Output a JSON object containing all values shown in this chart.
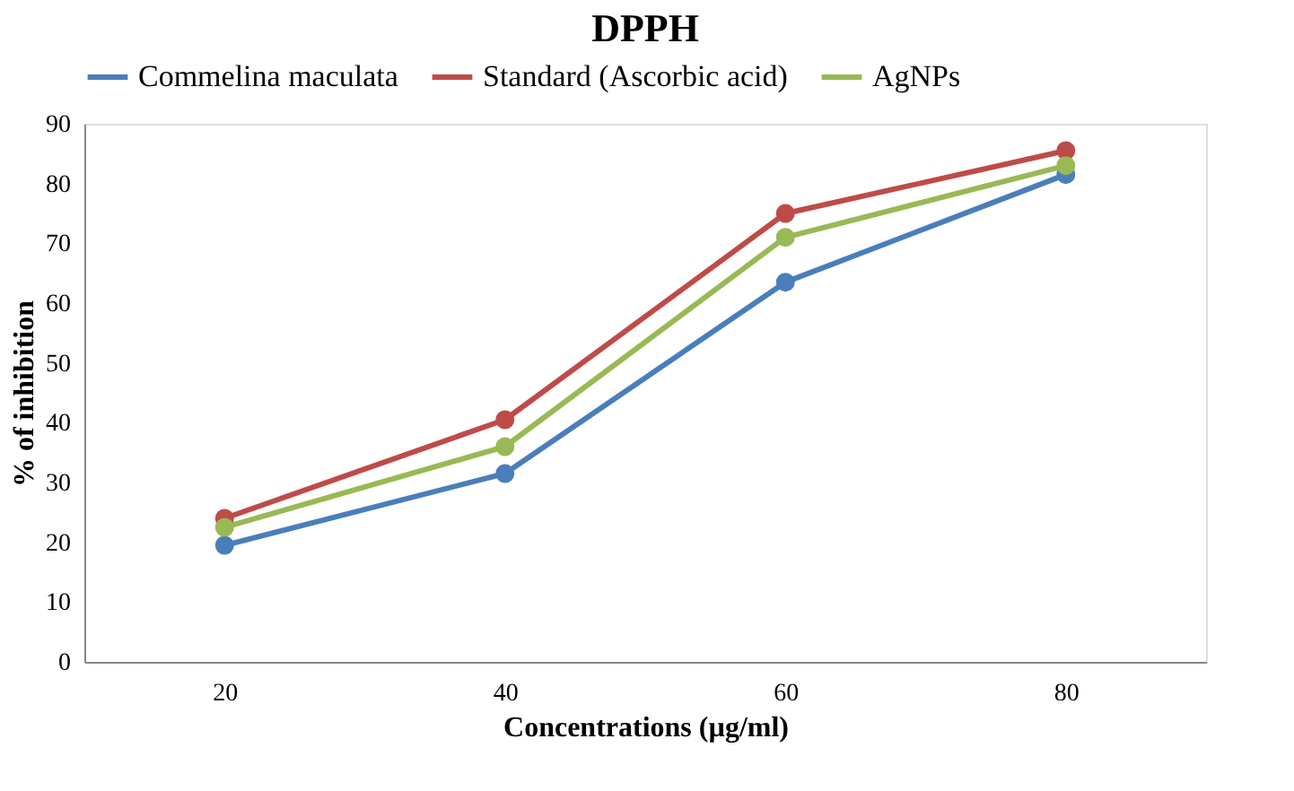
{
  "chart_data": {
    "type": "line",
    "title": "DPPH",
    "xlabel": "Concentrations (µg/ml)",
    "ylabel": "% of inhibition",
    "categories": [
      "20",
      "40",
      "60",
      "80"
    ],
    "series": [
      {
        "name": "Commelina maculata",
        "color": "#4a7ebb",
        "values": [
          19.5,
          31.5,
          63.5,
          81.5
        ]
      },
      {
        "name": "Standard (Ascorbic acid)",
        "color": "#be4b48",
        "values": [
          24,
          40.5,
          75,
          85.5
        ]
      },
      {
        "name": "AgNPs",
        "color": "#98b954",
        "values": [
          22.5,
          36,
          71,
          83
        ]
      }
    ],
    "ylim": [
      0,
      90
    ],
    "yticks": [
      0,
      10,
      20,
      30,
      40,
      50,
      60,
      70,
      80,
      90
    ],
    "grid": false,
    "legend": "top",
    "marker": "circle",
    "line_style": "solid"
  }
}
